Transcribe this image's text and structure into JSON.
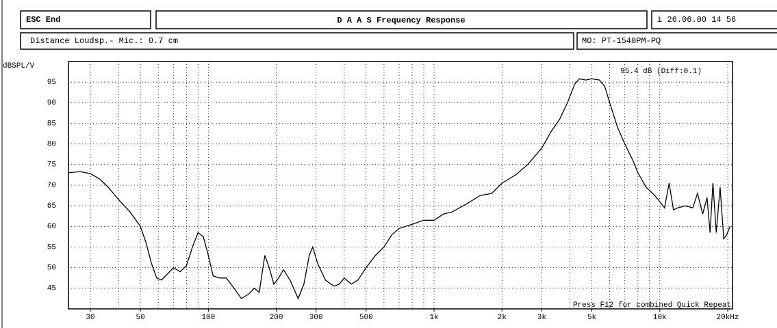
{
  "header": {
    "left": "ESC  End",
    "title": "D A A S   Frequency Response",
    "right": "i 26.06.00 14 56",
    "info": "Distance Loudsp.- Mic.: 0.7 cm",
    "model": "MO: PT-1540PM-PQ"
  },
  "chart_data": {
    "type": "line",
    "ylabel": "dBSPL/V",
    "log_x": true,
    "grid": true,
    "color": "#000000",
    "annotations": [
      "95.4  dB  (Diff:0.1)",
      "Press F12 for  combined Quick Repeat"
    ],
    "xlim": [
      24,
      21000
    ],
    "ylim": [
      40,
      100
    ],
    "yticks": [
      45,
      50,
      55,
      60,
      65,
      70,
      75,
      80,
      85,
      90,
      95
    ],
    "xticks": [
      30,
      50,
      100,
      200,
      300,
      500,
      {
        "value": 1000,
        "label": "1k"
      },
      {
        "value": 2000,
        "label": "2k"
      },
      {
        "value": 3000,
        "label": "3k"
      },
      {
        "value": 5000,
        "label": "5k"
      },
      {
        "value": 10000,
        "label": "10k"
      },
      {
        "value": 20000,
        "label": "20kHz"
      }
    ],
    "xgrid": [
      30,
      40,
      50,
      60,
      70,
      80,
      90,
      100,
      200,
      300,
      400,
      500,
      600,
      700,
      800,
      900,
      1000,
      2000,
      3000,
      4000,
      5000,
      6000,
      7000,
      8000,
      9000,
      10000,
      20000
    ],
    "x": [
      24,
      27,
      30,
      33,
      36,
      40,
      45,
      50,
      53,
      56,
      59,
      62,
      66,
      70,
      75,
      80,
      85,
      90,
      95,
      100,
      105,
      112,
      120,
      130,
      140,
      150,
      160,
      168,
      178,
      186,
      195,
      205,
      215,
      230,
      250,
      265,
      280,
      290,
      305,
      330,
      360,
      380,
      400,
      430,
      460,
      500,
      550,
      600,
      650,
      700,
      800,
      900,
      1000,
      1100,
      1200,
      1400,
      1600,
      1800,
      2000,
      2300,
      2600,
      3000,
      3300,
      3600,
      3900,
      4200,
      4400,
      4700,
      5000,
      5400,
      5700,
      6000,
      6500,
      7000,
      7600,
      8000,
      8700,
      9500,
      10000,
      10500,
      11000,
      11500,
      12000,
      13000,
      14000,
      14700,
      15500,
      16200,
      16700,
      17200,
      17800,
      18500,
      19200,
      19800,
      20500
    ],
    "values": [
      73,
      73.3,
      72.8,
      71.5,
      69.5,
      66.5,
      63.5,
      60,
      56,
      51,
      47.5,
      47,
      48.5,
      50,
      49,
      50.5,
      55,
      58.5,
      57.5,
      53,
      48,
      47.5,
      47.5,
      45,
      42.5,
      43.5,
      45,
      44,
      53,
      50,
      46,
      47.5,
      49.5,
      47,
      42.5,
      46,
      53,
      55,
      51,
      47,
      45.5,
      46,
      47.5,
      46,
      47,
      50,
      53,
      55,
      58,
      59.5,
      60.5,
      61.5,
      61.5,
      63,
      63.5,
      65.5,
      67.5,
      68,
      70.5,
      72.5,
      75,
      79,
      83,
      86,
      90,
      94.5,
      95.8,
      95.5,
      95.8,
      95.5,
      94,
      90,
      84,
      80,
      76,
      73,
      69.5,
      67.5,
      66,
      64.5,
      70.5,
      64,
      64.5,
      65,
      64.5,
      68,
      63,
      67,
      58.5,
      70.5,
      58.5,
      69.5,
      57,
      58,
      60
    ]
  }
}
